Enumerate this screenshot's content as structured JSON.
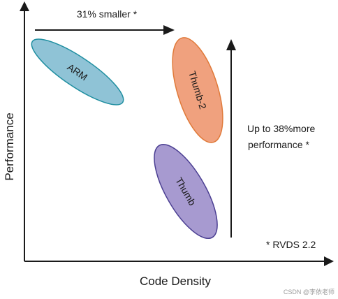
{
  "axes": {
    "x_label": "Code Density",
    "y_label": "Performance"
  },
  "ellipses": {
    "arm": {
      "label": "ARM",
      "fill": "#8fc3d6",
      "stroke": "#1e8ea0"
    },
    "thumb2": {
      "label": "Thumb-2",
      "fill": "#f0a17e",
      "stroke": "#e07a3a"
    },
    "thumb": {
      "label": "Thumb",
      "fill": "#a79ad0",
      "stroke": "#4b3f92"
    }
  },
  "annotations": {
    "smaller": "31% smaller *",
    "more_perf_line1": "Up to 38%more",
    "more_perf_line2": "performance *",
    "footnote": "* RVDS 2.2"
  },
  "watermark": "CSDN @李依老师"
}
